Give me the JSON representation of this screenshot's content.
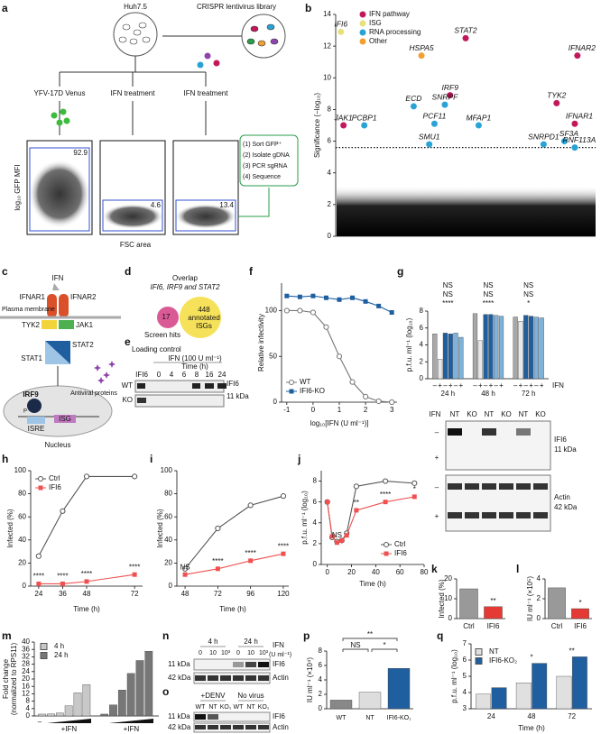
{
  "panel_labels": [
    "a",
    "b",
    "c",
    "d",
    "e",
    "f",
    "g",
    "h",
    "i",
    "j",
    "k",
    "l",
    "m",
    "n",
    "o",
    "p",
    "q"
  ],
  "a": {
    "cell_line": "Huh7.5",
    "library": "CRISPR lentivirus library",
    "conditions": [
      "YFV-17D Venus",
      "IFN treatment",
      "IFN treatment"
    ],
    "gates": [
      "92.9",
      "4.6",
      "13.4"
    ],
    "steps": [
      "(1) Sort GFP⁺",
      "(2) Isolate gDNA",
      "(3) PCR sgRNA",
      "(4) Sequence"
    ],
    "ylabel": "log₁₀ GFP MFI",
    "xlabel": "FSC area"
  },
  "b": {
    "type": "scatter",
    "ylabel": "Significance (−log₁₀)",
    "ylim": [
      0,
      14
    ],
    "yticks": [
      0,
      2,
      4,
      6,
      8,
      10,
      12,
      14
    ],
    "xlim": [
      0,
      100
    ],
    "threshold": 5.6,
    "series": [
      {
        "name": "IFN pathway",
        "color": "#c2185b",
        "labels": [
          "STAT2",
          "IFNAR2",
          "IRF9",
          "TYK2",
          "JAK1",
          "IFNAR1"
        ],
        "x": [
          50,
          93,
          44,
          85,
          3,
          92
        ],
        "values": [
          12.5,
          11.4,
          8.9,
          8.4,
          7.0,
          7.1
        ]
      },
      {
        "name": "ISG",
        "color": "#e8e07a",
        "labels": [
          "IFI6"
        ],
        "x": [
          2
        ],
        "values": [
          12.9
        ]
      },
      {
        "name": "RNA processing",
        "color": "#29a3d6",
        "labels": [
          "ECD",
          "SNRPF",
          "PCF11",
          "MFAP1",
          "PCBP1",
          "SMU1",
          "SNRPD1",
          "SF3A",
          "RNF113A"
        ],
        "x": [
          30,
          42,
          38,
          55,
          11,
          36,
          80,
          88,
          92
        ],
        "values": [
          8.2,
          8.3,
          7.1,
          7.0,
          7.0,
          5.8,
          5.8,
          6.0,
          5.6
        ]
      },
      {
        "name": "Other",
        "color": "#f0a030",
        "labels": [
          "HSPA5"
        ],
        "x": [
          33
        ],
        "values": [
          11.4
        ]
      }
    ]
  },
  "c": {
    "ligand": "IFN",
    "receptors": [
      "IFNAR1",
      "IFNAR2"
    ],
    "membrane": "Plasma membrane",
    "kinases": [
      "TYK2",
      "JAK1"
    ],
    "stats": [
      "STAT1",
      "STAT2"
    ],
    "irf": "IRF9",
    "phospho": "P",
    "isre": "ISRE",
    "isg": "ISG",
    "proteins": "Antiviral proteins",
    "nucleus": "Nucleus"
  },
  "d": {
    "title_lines": [
      "Overlap",
      "IFI6, IRF9 and STAT2"
    ],
    "hits": "17",
    "hits_label": "Screen hits",
    "isgs": [
      "448",
      "annotated",
      "ISGs"
    ]
  },
  "e": {
    "loading": "Loading control",
    "loading_lane": "IFI6",
    "treatment": "IFN (100 U ml⁻¹)",
    "time": "Time (h)",
    "times": [
      "0",
      "4",
      "6",
      "8",
      "16",
      "24"
    ],
    "rows": [
      "WT",
      "KO"
    ],
    "protein": "IFI6",
    "size": "11 kDa"
  },
  "f": {
    "type": "line",
    "xlabel": "log₁₀[IFN (U ml⁻¹)]",
    "ylabel": "Relative infectivity",
    "xlim": [
      -1.2,
      3.2
    ],
    "xticks": [
      -1,
      0,
      1,
      2,
      3
    ],
    "ylim": [
      0,
      130
    ],
    "yticks": [
      0,
      50,
      100
    ],
    "legend": "lower left",
    "x": [
      -1,
      -0.5,
      0,
      0.5,
      1,
      1.5,
      2,
      2.5,
      3
    ],
    "series": [
      {
        "name": "WT",
        "color": "#777",
        "marker": "circle",
        "values": [
          100,
          100,
          98,
          82,
          50,
          22,
          6,
          1,
          0
        ]
      },
      {
        "name": "IFI6-KO",
        "color": "#1f5fa0",
        "marker": "square",
        "values": [
          116,
          115,
          116,
          114,
          112,
          114,
          110,
          105,
          98
        ]
      }
    ]
  },
  "g": {
    "type": "bar",
    "ylabel": "p.f.u. ml⁻¹ (log₁₀)",
    "ylim": [
      0,
      8
    ],
    "yticks": [
      0,
      2,
      4,
      6,
      8
    ],
    "categories": [
      "24 h",
      "48 h",
      "72 h"
    ],
    "ifn_label": "IFN",
    "ifn_states": [
      "–",
      "+"
    ],
    "series": [
      {
        "name": "NT",
        "color": "#a8a8a8",
        "values": [
          5.3,
          7.7,
          7.3
        ]
      },
      {
        "color": "#e8e8e8",
        "values": [
          2.3,
          4.5,
          6.8
        ]
      },
      {
        "name": "IFI6",
        "color": "#1f5fa0",
        "values": [
          5.4,
          7.6,
          7.5
        ]
      },
      {
        "color": "#1f5fa0",
        "values": [
          5.3,
          7.6,
          7.4
        ]
      },
      {
        "name": "KO₂",
        "color": "#7fb2d9",
        "values": [
          5.4,
          7.5,
          7.3
        ]
      },
      {
        "color": "#7fb2d9",
        "values": [
          4.9,
          7.4,
          7.2
        ]
      }
    ],
    "comparisons": [
      [
        "NS",
        "NS",
        "****"
      ],
      [
        "NS",
        "NS",
        "****"
      ],
      [
        "NS",
        "NS",
        "*"
      ]
    ],
    "blot": {
      "treatment": "IFN",
      "lanes": [
        "NT",
        "KO",
        "NT",
        "KO",
        "NT",
        "KO"
      ],
      "rows": [
        "–",
        "+",
        "–",
        "+"
      ],
      "proteins": [
        "IFI6",
        "Actin"
      ],
      "sizes": [
        "11 kDa",
        "42 kDa"
      ]
    }
  },
  "h": {
    "type": "line",
    "xlabel": "Time (h)",
    "ylabel": "Infected (%)",
    "xlim": [
      20,
      76
    ],
    "xticks": [
      24,
      36,
      48,
      72
    ],
    "ylim": [
      0,
      100
    ],
    "yticks": [
      0,
      20,
      40,
      60,
      80,
      100
    ],
    "legend": "upper left",
    "x": [
      24,
      36,
      48,
      72
    ],
    "series": [
      {
        "name": "Ctrl",
        "color": "#555",
        "marker": "circle",
        "values": [
          26,
          65,
          95,
          95
        ]
      },
      {
        "name": "IFI6",
        "color": "#f05050",
        "marker": "square",
        "values": [
          2,
          2,
          4,
          10
        ]
      }
    ],
    "significance": [
      "****",
      "****",
      "****",
      "****"
    ]
  },
  "i": {
    "type": "line",
    "xlabel": "Time (h)",
    "ylabel": "Infected (%)",
    "xlim": [
      42,
      124
    ],
    "xticks": [
      48,
      72,
      96,
      120
    ],
    "ylim": [
      0,
      100
    ],
    "yticks": [
      0,
      20,
      40,
      60,
      80,
      100
    ],
    "x": [
      48,
      72,
      96,
      120
    ],
    "series": [
      {
        "name": "Ctrl",
        "color": "#555",
        "marker": "circle",
        "values": [
          15,
          50,
          70,
          78
        ]
      },
      {
        "name": "IFI6",
        "color": "#f05050",
        "marker": "square",
        "values": [
          10,
          15,
          22,
          28
        ]
      }
    ],
    "significance": [
      "NS",
      "****",
      "****",
      "****"
    ]
  },
  "j": {
    "type": "line",
    "xlabel": "Time (h)",
    "ylabel": "p.f.u. ml⁻¹ (log₁₀)",
    "xlim": [
      -5,
      80
    ],
    "xticks": [
      0,
      20,
      40,
      60,
      80
    ],
    "ylim": [
      0,
      9
    ],
    "yticks": [
      0,
      2,
      4,
      6,
      8
    ],
    "legend": "lower right",
    "x": [
      0,
      4,
      8,
      12,
      16,
      24,
      48,
      72
    ],
    "series": [
      {
        "name": "Ctrl",
        "color": "#555",
        "marker": "circle",
        "values": [
          6,
          2.6,
          2.2,
          2.3,
          3.0,
          7.5,
          8.0,
          7.8
        ]
      },
      {
        "name": "IFI6",
        "color": "#f05050",
        "marker": "square",
        "values": [
          6,
          2.7,
          2.1,
          2.3,
          2.8,
          5.2,
          6.0,
          6.5
        ]
      }
    ],
    "significance": [
      null,
      null,
      "NS",
      null,
      null,
      "**",
      "****",
      "*"
    ]
  },
  "k": {
    "type": "bar",
    "ylabel": "Infected (%)",
    "ylim": [
      0,
      20
    ],
    "yticks": [
      0,
      10,
      20
    ],
    "categories": [
      "Ctrl",
      "IFI6"
    ],
    "series": [
      {
        "colors": [
          "#999",
          "#e53935"
        ],
        "values": [
          15,
          6
        ]
      }
    ],
    "significance": [
      null,
      "**"
    ]
  },
  "l": {
    "type": "bar",
    "ylabel": "IU ml⁻¹ (×10⁵)",
    "ylim": [
      0,
      4
    ],
    "yticks": [
      0,
      2,
      4
    ],
    "categories": [
      "Ctrl",
      "IFI6"
    ],
    "series": [
      {
        "colors": [
          "#999",
          "#e53935"
        ],
        "values": [
          3.1,
          1.0
        ]
      }
    ],
    "significance": [
      null,
      "*"
    ]
  },
  "m": {
    "type": "bar",
    "ylabel": [
      "Fold change",
      "(normalized to RPS11)"
    ],
    "ylim": [
      0,
      40
    ],
    "yticks": [
      0,
      4,
      8,
      12,
      16,
      20,
      24,
      28,
      32,
      36,
      40
    ],
    "legend": "upper left",
    "series": [
      {
        "name": "4 h",
        "color": "#c8c8c8",
        "values": [
          1,
          1.1,
          1.6,
          5.5,
          12.5,
          17
        ]
      },
      {
        "name": "24 h",
        "color": "#777",
        "values": [
          1,
          6,
          14,
          23,
          30,
          35
        ]
      }
    ],
    "x_labels": [
      "–",
      "+IFN",
      "+IFN"
    ]
  },
  "n": {
    "times": [
      "4 h",
      "24 h"
    ],
    "doses": [
      "0",
      "10",
      "10³",
      "0",
      "10",
      "10³"
    ],
    "treatment": [
      "IFN",
      "(U ml⁻¹)"
    ],
    "sizes": [
      "11 kDa",
      "42 kDa"
    ],
    "proteins": [
      "IFI6",
      "Actin"
    ]
  },
  "o": {
    "conditions": [
      "+DENV",
      "No virus"
    ],
    "lanes": [
      "WT",
      "NT",
      "KO₁",
      "WT",
      "NT",
      "KO₁"
    ],
    "sizes": [
      "11 kDa",
      "42 kDa"
    ],
    "proteins": [
      "IFI6",
      "Actin"
    ]
  },
  "p": {
    "type": "bar",
    "ylabel": "IU ml⁻¹ (×10⁴)",
    "ylim": [
      0,
      8
    ],
    "yticks": [
      0,
      2,
      4,
      6,
      8
    ],
    "categories": [
      "WT",
      "NT",
      "IFI6-KO₁"
    ],
    "series": [
      {
        "colors": [
          "#888",
          "#ddd",
          "#1f5fa0"
        ],
        "values": [
          1.2,
          2.3,
          5.6
        ]
      }
    ],
    "comparisons": [
      "NS",
      "**",
      "*"
    ]
  },
  "q": {
    "type": "bar",
    "xlabel": "Time (h)",
    "ylabel": "p.f.u. ml⁻¹ (log₁₀)",
    "ylim": [
      3,
      7
    ],
    "yticks": [
      3,
      4,
      5,
      6,
      7
    ],
    "categories": [
      "24",
      "48",
      "72"
    ],
    "legend": "upper left",
    "series": [
      {
        "name": "NT",
        "color": "#e0e0e0",
        "values": [
          3.9,
          4.6,
          5.0
        ]
      },
      {
        "name": "IFI6-KO₂",
        "color": "#1f5fa0",
        "values": [
          4.3,
          5.8,
          6.2
        ]
      }
    ],
    "significance": [
      null,
      "*",
      "**"
    ]
  }
}
